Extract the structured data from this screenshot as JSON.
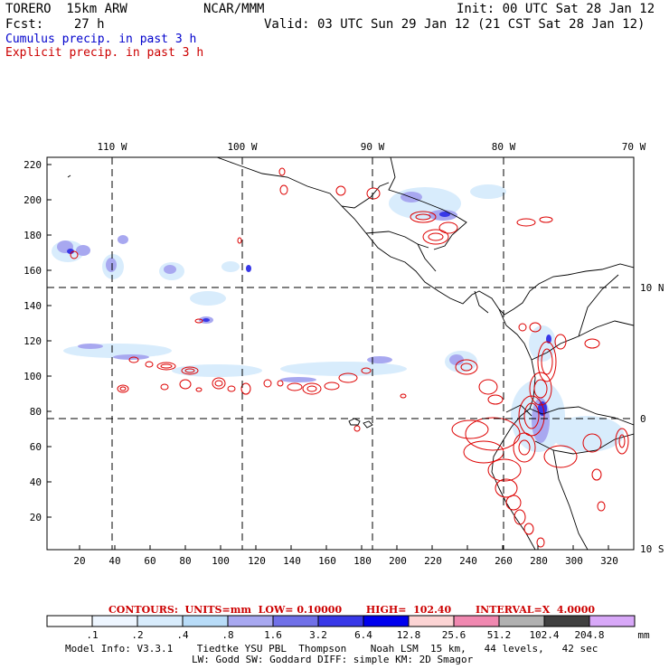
{
  "header": {
    "model": "TORERO  15km ARW",
    "org": "NCAR/MMM",
    "init": "Init: 00 UTC Sat 28 Jan 12",
    "fcst": "Fcst:    27 h",
    "valid": "Valid: 03 UTC Sun 29 Jan 12 (21 CST Sat 28 Jan 12)",
    "field1": "Cumulus precip. in past 3 h",
    "field2": "Explicit precip. in past 3 h",
    "field1_color": "#0000cc",
    "field2_color": "#cc0000"
  },
  "map": {
    "top_lon_labels": [
      "110 W",
      "100 W",
      "90 W",
      "80 W",
      "70 W"
    ],
    "right_lat_labels": [
      "10 N",
      "0",
      "10 S"
    ],
    "y_ticks": [
      "220",
      "200",
      "180",
      "160",
      "140",
      "120",
      "100",
      "80",
      "60",
      "40",
      "20"
    ],
    "x_ticks": [
      "20",
      "40",
      "60",
      "80",
      "100",
      "120",
      "140",
      "160",
      "180",
      "200",
      "220",
      "240",
      "260",
      "280",
      "300",
      "320"
    ]
  },
  "contours_line": "CONTOURS:  UNITS=mm  LOW= 0.10000       HIGH=  102.40       INTERVAL=X  4.0000",
  "colorbar": {
    "labels": [
      ".1",
      ".2",
      ".4",
      ".8",
      "1.6",
      "3.2",
      "6.4",
      "12.8",
      "25.6",
      "51.2",
      "102.4",
      "204.8"
    ],
    "unit": "mm",
    "colors": [
      "#ffffff",
      "#eef6ff",
      "#d8ecfc",
      "#b8dcf8",
      "#a8a8f0",
      "#7070e8",
      "#3838e8",
      "#0000ee",
      "#fcd4d4",
      "#f088b0",
      "#b0b0b0",
      "#404040",
      "#d8a8f8"
    ]
  },
  "footer": {
    "line1": "Model Info: V3.3.1    Tiedtke YSU PBL  Thompson    Noah LSM  15 km,   44 levels,   42 sec",
    "line2": "LW: Godd SW: Goddard DIFF: simple KM: 2D Smagor"
  }
}
